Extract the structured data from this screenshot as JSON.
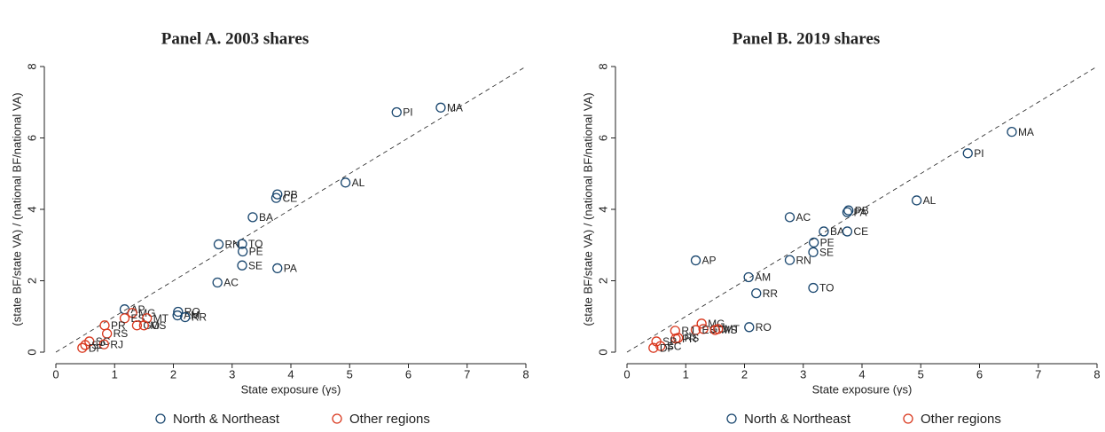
{
  "chart_data": [
    {
      "type": "scatter",
      "title": "Panel A. 2003 shares",
      "xlabel": "State exposure (γs)",
      "ylabel": "(state BF/state VA) / (national BF/national VA)",
      "xlim": [
        0,
        8
      ],
      "ylim": [
        0,
        8
      ],
      "xticks": [
        0,
        1,
        2,
        3,
        4,
        5,
        6,
        7,
        8
      ],
      "yticks": [
        0,
        2,
        4,
        6,
        8
      ],
      "legend": "bottom",
      "series": [
        {
          "name": "North & Northeast",
          "color": "#1a476f",
          "labels": [
            "PI",
            "MA",
            "PB",
            "CE",
            "AL",
            "BA",
            "RN",
            "TO",
            "PE",
            "SE",
            "PA",
            "AC",
            "AP",
            "RO",
            "AM",
            "RR"
          ],
          "x": [
            5.8,
            6.55,
            3.77,
            3.75,
            4.93,
            3.35,
            2.77,
            3.17,
            3.18,
            3.17,
            3.77,
            2.75,
            1.17,
            2.08,
            2.07,
            2.2
          ],
          "values": [
            6.72,
            6.85,
            4.42,
            4.32,
            4.75,
            3.78,
            3.02,
            3.03,
            2.82,
            2.43,
            2.35,
            1.95,
            1.2,
            1.13,
            1.03,
            0.98
          ]
        },
        {
          "name": "Other regions",
          "color": "#d9381e",
          "labels": [
            "MG",
            "ES",
            "MT",
            "GO",
            "MS",
            "PR",
            "RS",
            "SC",
            "SP",
            "RJ",
            "DF"
          ],
          "x": [
            1.3,
            1.17,
            1.55,
            1.38,
            1.5,
            0.83,
            0.87,
            0.57,
            0.5,
            0.82,
            0.45
          ],
          "values": [
            1.1,
            0.95,
            0.95,
            0.75,
            0.75,
            0.75,
            0.52,
            0.3,
            0.2,
            0.22,
            0.12
          ]
        }
      ]
    },
    {
      "type": "scatter",
      "title": "Panel B. 2019 shares",
      "xlabel": "State exposure (γs)",
      "ylabel": "(state BF/state VA) / (national BF/national VA)",
      "xlim": [
        0,
        8
      ],
      "ylim": [
        0,
        8
      ],
      "xticks": [
        0,
        1,
        2,
        3,
        4,
        5,
        6,
        7,
        8
      ],
      "yticks": [
        0,
        2,
        4,
        6,
        8
      ],
      "legend": "bottom",
      "series": [
        {
          "name": "North & Northeast",
          "color": "#1a476f",
          "labels": [
            "MA",
            "PI",
            "AL",
            "PB",
            "PA",
            "AC",
            "BA",
            "CE",
            "PE",
            "SE",
            "AP",
            "RN",
            "AM",
            "TO",
            "RR",
            "RO"
          ],
          "x": [
            6.55,
            5.8,
            4.93,
            3.77,
            3.75,
            2.77,
            3.35,
            3.75,
            3.18,
            3.17,
            1.17,
            2.77,
            2.07,
            3.17,
            2.2,
            2.08
          ],
          "values": [
            6.17,
            5.57,
            4.25,
            3.97,
            3.92,
            3.78,
            3.38,
            3.38,
            3.07,
            2.8,
            2.57,
            2.58,
            2.1,
            1.8,
            1.65,
            0.7
          ]
        },
        {
          "name": "Other regions",
          "color": "#d9381e",
          "labels": [
            "MG",
            "GO",
            "ES",
            "MS",
            "MT",
            "RJ",
            "PR",
            "RS",
            "SP",
            "SC",
            "DF"
          ],
          "x": [
            1.27,
            1.3,
            1.17,
            1.5,
            1.55,
            0.82,
            0.83,
            0.87,
            0.5,
            0.57,
            0.45
          ],
          "values": [
            0.8,
            0.65,
            0.62,
            0.62,
            0.65,
            0.6,
            0.38,
            0.4,
            0.3,
            0.17,
            0.12
          ]
        }
      ]
    }
  ]
}
